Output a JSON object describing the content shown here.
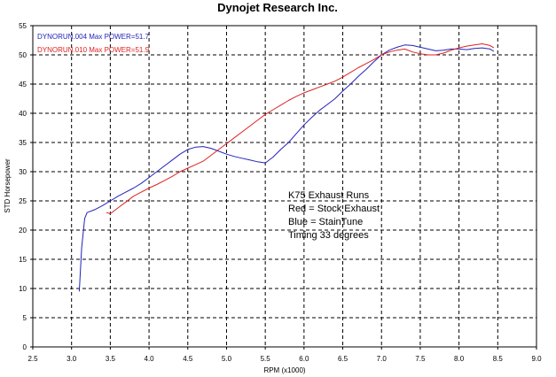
{
  "chart_data": {
    "type": "line",
    "title": "Dynojet Research Inc.",
    "xlabel": "RPM (x1000)",
    "ylabel": "STD Horsepower",
    "xlim": [
      2.5,
      9.0
    ],
    "ylim": [
      0,
      55
    ],
    "xticks": [
      "2.5",
      "3.0",
      "3.5",
      "4.0",
      "4.5",
      "5.0",
      "5.5",
      "6.0",
      "6.5",
      "7.0",
      "7.5",
      "8.0",
      "8.5",
      "9.0"
    ],
    "yticks": [
      "0",
      "5",
      "10",
      "15",
      "20",
      "25",
      "30",
      "35",
      "40",
      "45",
      "50",
      "55"
    ],
    "grid": true,
    "legend_position": "top-left",
    "series": [
      {
        "name": "DYNORUN.004  Max POWER=51.7",
        "color": "#2222bb",
        "x": [
          3.1,
          3.13,
          3.17,
          3.2,
          3.3,
          3.4,
          3.5,
          3.6,
          3.7,
          3.8,
          3.9,
          4.0,
          4.1,
          4.2,
          4.3,
          4.4,
          4.5,
          4.6,
          4.7,
          4.8,
          4.9,
          5.0,
          5.1,
          5.2,
          5.3,
          5.4,
          5.5,
          5.6,
          5.7,
          5.8,
          5.9,
          6.0,
          6.1,
          6.2,
          6.3,
          6.4,
          6.5,
          6.6,
          6.7,
          6.8,
          6.9,
          7.0,
          7.1,
          7.2,
          7.3,
          7.4,
          7.5,
          7.6,
          7.7,
          7.8,
          7.9,
          8.0,
          8.1,
          8.2,
          8.3,
          8.4,
          8.45
        ],
        "y": [
          9.5,
          17.0,
          22.0,
          23.0,
          23.5,
          24.2,
          25.0,
          25.8,
          26.5,
          27.2,
          28.0,
          29.0,
          30.0,
          31.0,
          32.0,
          33.0,
          33.8,
          34.2,
          34.3,
          34.0,
          33.5,
          33.0,
          32.6,
          32.3,
          32.0,
          31.7,
          31.5,
          32.5,
          33.8,
          35.0,
          36.5,
          38.0,
          39.3,
          40.5,
          41.5,
          42.5,
          43.8,
          45.0,
          46.3,
          47.5,
          48.8,
          50.0,
          50.8,
          51.3,
          51.7,
          51.6,
          51.3,
          51.0,
          50.7,
          50.8,
          51.0,
          51.0,
          50.9,
          51.1,
          51.2,
          51.0,
          50.6
        ]
      },
      {
        "name": "DYNORUN.010  Max POWER=51.9",
        "color": "#dd2222",
        "x": [
          3.45,
          3.5,
          3.6,
          3.7,
          3.8,
          3.9,
          4.0,
          4.1,
          4.2,
          4.3,
          4.4,
          4.5,
          4.6,
          4.7,
          4.8,
          4.9,
          5.0,
          5.1,
          5.2,
          5.3,
          5.4,
          5.5,
          5.6,
          5.7,
          5.8,
          5.9,
          6.0,
          6.1,
          6.2,
          6.3,
          6.4,
          6.5,
          6.6,
          6.7,
          6.8,
          6.9,
          7.0,
          7.1,
          7.2,
          7.3,
          7.4,
          7.5,
          7.6,
          7.7,
          7.8,
          7.9,
          8.0,
          8.1,
          8.2,
          8.3,
          8.4,
          8.45
        ],
        "y": [
          23.0,
          22.8,
          23.8,
          24.8,
          25.8,
          26.5,
          27.2,
          27.8,
          28.5,
          29.2,
          30.0,
          30.6,
          31.2,
          31.8,
          32.8,
          33.8,
          34.8,
          35.8,
          36.8,
          37.8,
          38.8,
          39.8,
          40.6,
          41.4,
          42.2,
          42.9,
          43.5,
          44.0,
          44.5,
          45.0,
          45.5,
          46.2,
          47.0,
          47.8,
          48.5,
          49.2,
          50.0,
          50.5,
          50.8,
          51.0,
          50.5,
          50.2,
          50.0,
          50.0,
          50.3,
          50.8,
          51.2,
          51.5,
          51.7,
          51.9,
          51.6,
          51.2
        ]
      }
    ],
    "annotations": [
      "K75 Exhaust Runs",
      "Red = Stock Exhaust",
      "Blue = StainTune",
      "Timing 33 degrees"
    ]
  }
}
